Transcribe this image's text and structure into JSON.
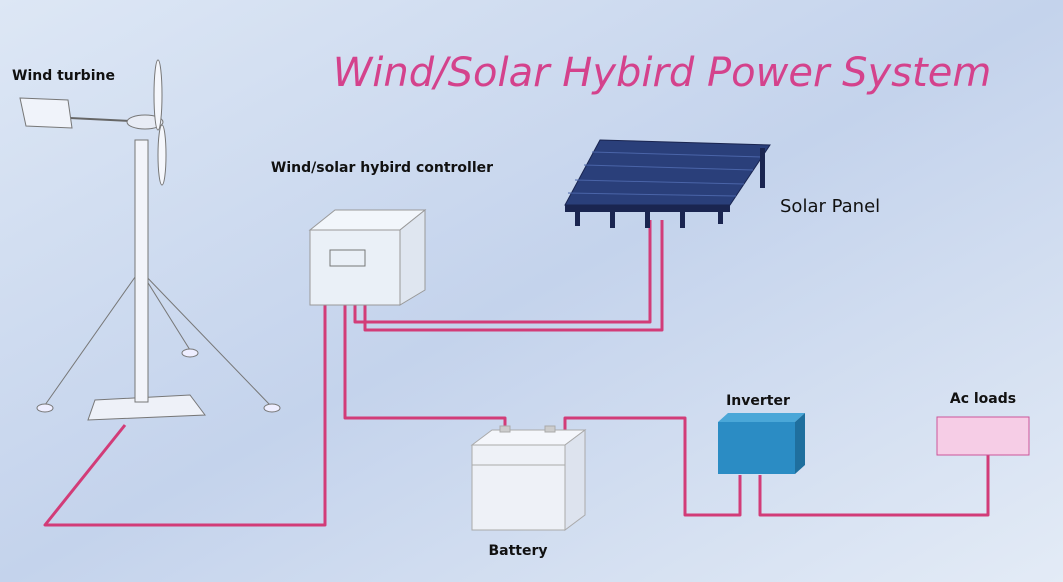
{
  "header": {
    "title": "Wind/Solar Hybird Power System"
  },
  "nodes": [
    {
      "label": "Wind turbine"
    },
    {
      "label": "Wind/solar hybird controller"
    },
    {
      "label": "Solar Panel"
    },
    {
      "label": "Inverter"
    },
    {
      "label": "Ac loads"
    },
    {
      "label": "Battery"
    }
  ]
}
